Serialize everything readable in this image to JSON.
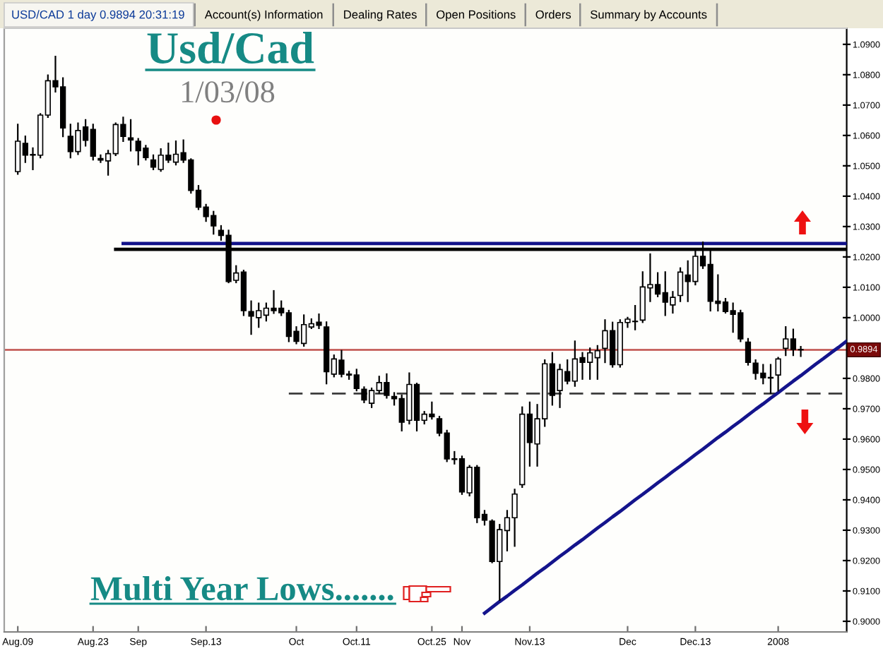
{
  "chart_data": {
    "type": "candlestick",
    "title": "Usd/Cad",
    "subtitle": "1/03/08",
    "annotations": [
      "USD/CAD 1 day 0.9894 20:31:19",
      "Account(s) Information",
      "Dealing Rates",
      "Open Positions",
      "Orders",
      "Summary by Accounts",
      "Multi Year Lows......."
    ],
    "categories": [
      "Aug.09",
      null,
      null,
      null,
      null,
      null,
      null,
      null,
      null,
      null,
      "Aug.23",
      null,
      null,
      null,
      null,
      null,
      "Sep",
      null,
      null,
      null,
      null,
      null,
      null,
      null,
      null,
      "Sep.13",
      null,
      null,
      null,
      null,
      null,
      null,
      null,
      null,
      null,
      null,
      null,
      "Oct",
      null,
      null,
      null,
      null,
      null,
      null,
      null,
      "Oct.11",
      null,
      null,
      null,
      null,
      null,
      null,
      null,
      null,
      null,
      "Oct.25",
      null,
      null,
      null,
      "Nov",
      null,
      null,
      null,
      null,
      null,
      null,
      null,
      null,
      "Nov.13",
      null,
      null,
      null,
      null,
      null,
      null,
      null,
      null,
      null,
      null,
      null,
      null,
      "Dec",
      null,
      null,
      null,
      null,
      null,
      null,
      null,
      null,
      "Dec.13",
      null,
      null,
      null,
      null,
      null,
      null,
      null,
      null,
      null,
      null,
      "2008",
      null,
      null,
      null,
      null,
      null,
      null,
      null,
      null,
      null
    ],
    "ohlc": [
      [
        1.0481,
        1.0636,
        1.0473,
        1.0581
      ],
      [
        1.0574,
        1.0597,
        1.0512,
        1.0535
      ],
      [
        1.0535,
        1.0558,
        1.0488,
        1.0537
      ],
      [
        1.0535,
        1.0671,
        1.0527,
        1.0667
      ],
      [
        1.0667,
        1.0798,
        1.066,
        1.078
      ],
      [
        1.078,
        1.086,
        1.0744,
        1.076
      ],
      [
        1.076,
        1.0789,
        1.0597,
        1.0625
      ],
      [
        1.0597,
        1.0636,
        1.0527,
        1.0547
      ],
      [
        1.0547,
        1.064,
        1.0538,
        1.0616
      ],
      [
        1.0628,
        1.0651,
        1.0566,
        1.0584
      ],
      [
        1.062,
        1.0636,
        1.052,
        1.0532
      ],
      [
        1.0524,
        1.0535,
        1.0512,
        1.0519
      ],
      [
        1.0516,
        1.055,
        1.047,
        1.054
      ],
      [
        1.054,
        1.064,
        1.0535,
        1.0636
      ],
      [
        1.0636,
        1.0659,
        1.0581,
        1.0597
      ],
      [
        1.0592,
        1.0651,
        1.055,
        1.0585
      ],
      [
        1.0581,
        1.0589,
        1.0504,
        1.055
      ],
      [
        1.0558,
        1.0566,
        1.052,
        1.0527
      ],
      [
        1.0519,
        1.0535,
        1.0488,
        1.0496
      ],
      [
        1.0488,
        1.0555,
        1.0483,
        1.0535
      ],
      [
        1.0535,
        1.0574,
        1.0512,
        1.0519
      ],
      [
        1.0512,
        1.0581,
        1.0504,
        1.0538
      ],
      [
        1.0543,
        1.0584,
        1.0512,
        1.0519
      ],
      [
        1.0519,
        1.0522,
        1.0411,
        1.0419
      ],
      [
        1.0419,
        1.0434,
        1.0357,
        1.0364
      ],
      [
        1.0364,
        1.0372,
        1.0318,
        1.0333
      ],
      [
        1.0336,
        1.0349,
        1.0276,
        1.0302
      ],
      [
        1.0287,
        1.0302,
        1.0256,
        1.0271
      ],
      [
        1.0271,
        1.0287,
        1.0116,
        1.0119
      ],
      [
        1.0123,
        1.017,
        1.0116,
        1.0147
      ],
      [
        1.015,
        1.0155,
        1.0008,
        1.0023
      ],
      [
        1.002,
        1.0054,
        0.9946,
        1.0005
      ],
      [
        1.0,
        1.0047,
        0.9969,
        1.0023
      ],
      [
        1.0008,
        1.0047,
        0.999,
        1.0031
      ],
      [
        1.0031,
        1.0088,
        1.0015,
        1.0023
      ],
      [
        1.0031,
        1.0054,
        1.0008,
        1.0016
      ],
      [
        1.0016,
        1.0023,
        0.9922,
        0.9938
      ],
      [
        0.9955,
        0.9969,
        0.9915,
        0.9922
      ],
      [
        0.9915,
        1.0008,
        0.9907,
        0.9977
      ],
      [
        0.9969,
        0.9995,
        0.9965,
        0.998
      ],
      [
        0.9985,
        1.0011,
        0.9965,
        0.9975
      ],
      [
        0.9969,
        0.9985,
        0.9783,
        0.9822
      ],
      [
        0.9814,
        0.9876,
        0.9806,
        0.9864
      ],
      [
        0.986,
        0.9891,
        0.9806,
        0.9814
      ],
      [
        0.9814,
        0.9822,
        0.9798,
        0.9811
      ],
      [
        0.9811,
        0.9829,
        0.976,
        0.9767
      ],
      [
        0.9764,
        0.9771,
        0.9721,
        0.9729
      ],
      [
        0.9718,
        0.9767,
        0.9705,
        0.976
      ],
      [
        0.976,
        0.9806,
        0.9752,
        0.9786
      ],
      [
        0.9786,
        0.9814,
        0.9736,
        0.9744
      ],
      [
        0.974,
        0.9752,
        0.9713,
        0.9733
      ],
      [
        0.9733,
        0.9744,
        0.9628,
        0.9656
      ],
      [
        0.9662,
        0.9817,
        0.9651,
        0.978
      ],
      [
        0.978,
        0.9783,
        0.9628,
        0.9662
      ],
      [
        0.9662,
        0.969,
        0.9651,
        0.9682
      ],
      [
        0.9682,
        0.9721,
        0.9667,
        0.9674
      ],
      [
        0.9667,
        0.9674,
        0.9612,
        0.962
      ],
      [
        0.962,
        0.9628,
        0.9527,
        0.9535
      ],
      [
        0.9535,
        0.9558,
        0.9519,
        0.9533
      ],
      [
        0.9535,
        0.9543,
        0.9419,
        0.9426
      ],
      [
        0.9423,
        0.9512,
        0.9414,
        0.9507
      ],
      [
        0.9507,
        0.9512,
        0.9326,
        0.9341
      ],
      [
        0.9352,
        0.9364,
        0.9318,
        0.9333
      ],
      [
        0.933,
        0.9333,
        0.9194,
        0.9197
      ],
      [
        0.9197,
        0.9318,
        0.907,
        0.9302
      ],
      [
        0.9299,
        0.9364,
        0.9233,
        0.9341
      ],
      [
        0.9341,
        0.9434,
        0.9248,
        0.9419
      ],
      [
        0.945,
        0.9705,
        0.9442,
        0.9682
      ],
      [
        0.9682,
        0.9721,
        0.9512,
        0.9589
      ],
      [
        0.9584,
        0.9713,
        0.9512,
        0.9667
      ],
      [
        0.9667,
        0.986,
        0.9643,
        0.9848
      ],
      [
        0.9848,
        0.9884,
        0.9713,
        0.9744
      ],
      [
        0.976,
        0.9845,
        0.9705,
        0.9829
      ],
      [
        0.9822,
        0.986,
        0.9783,
        0.9791
      ],
      [
        0.9791,
        0.9922,
        0.9775,
        0.9864
      ],
      [
        0.9868,
        0.9884,
        0.9798,
        0.9853
      ],
      [
        0.9853,
        0.9899,
        0.9798,
        0.9884
      ],
      [
        0.9868,
        0.9907,
        0.9798,
        0.9891
      ],
      [
        0.9899,
        0.9992,
        0.9853,
        0.9957
      ],
      [
        0.9957,
        0.9984,
        0.9838,
        0.9845
      ],
      [
        0.9845,
        0.9992,
        0.9838,
        0.9984
      ],
      [
        0.9984,
        1.0,
        0.9969,
        0.9995
      ],
      [
        0.9988,
        1.0039,
        0.9961,
        0.9987
      ],
      [
        0.9992,
        1.015,
        0.9985,
        1.0101
      ],
      [
        1.0098,
        1.0209,
        1.0054,
        1.0109
      ],
      [
        1.0109,
        1.0147,
        1.007,
        1.0078
      ],
      [
        1.0082,
        1.015,
        1.0008,
        1.0051
      ],
      [
        1.0042,
        1.0085,
        1.0016,
        1.0067
      ],
      [
        1.0073,
        1.0163,
        1.0054,
        1.015
      ],
      [
        1.014,
        1.0186,
        1.0054,
        1.0119
      ],
      [
        1.0119,
        1.0225,
        1.0109,
        1.0202
      ],
      [
        1.0202,
        1.0248,
        1.0163,
        1.0171
      ],
      [
        1.0175,
        1.0225,
        1.0023,
        1.0054
      ],
      [
        1.0054,
        1.014,
        1.0023,
        1.0047
      ],
      [
        1.0051,
        1.0062,
        1.0016,
        1.002
      ],
      [
        1.0023,
        1.0047,
        0.9953,
        1.0011
      ],
      [
        1.0016,
        1.0023,
        0.9922,
        0.993
      ],
      [
        0.9919,
        0.993,
        0.9845,
        0.9853
      ],
      [
        0.985,
        0.986,
        0.9798,
        0.9817
      ],
      [
        0.9817,
        0.9845,
        0.9783,
        0.9802
      ],
      [
        0.9803,
        0.9845,
        0.9752,
        0.9801
      ],
      [
        0.9811,
        0.9868,
        0.976,
        0.9864
      ],
      [
        0.9899,
        0.9969,
        0.9876,
        0.993
      ],
      [
        0.993,
        0.9961,
        0.9876,
        0.9895
      ],
      [
        0.9895,
        0.9904,
        0.9873,
        0.9894
      ],
      null,
      null,
      null,
      null,
      null,
      null
    ],
    "ylim": [
      0.8965,
      1.0953
    ],
    "yticks": [
      {
        "value": 0.9,
        "label": "0.9000"
      },
      {
        "value": 0.91,
        "label": "0.9100"
      },
      {
        "value": 0.92,
        "label": "0.9200"
      },
      {
        "value": 0.93,
        "label": "0.9300"
      },
      {
        "value": 0.94,
        "label": "0.9400"
      },
      {
        "value": 0.95,
        "label": "0.9500"
      },
      {
        "value": 0.96,
        "label": "0.9600"
      },
      {
        "value": 0.97,
        "label": "0.9700"
      },
      {
        "value": 0.98,
        "label": "0.9800"
      },
      {
        "value": 1.0,
        "label": "1.0000"
      },
      {
        "value": 1.01,
        "label": "1.0100"
      },
      {
        "value": 1.02,
        "label": "1.0200"
      },
      {
        "value": 1.03,
        "label": "1.0300"
      },
      {
        "value": 1.04,
        "label": "1.0400"
      },
      {
        "value": 1.05,
        "label": "1.0500"
      },
      {
        "value": 1.06,
        "label": "1.0600"
      },
      {
        "value": 1.07,
        "label": "1.0700"
      },
      {
        "value": 1.08,
        "label": "1.0800"
      },
      {
        "value": 1.09,
        "label": "1.0900"
      }
    ],
    "series": [
      {
        "type": "line",
        "color": "#10108a",
        "values": [
          null,
          null,
          null,
          null,
          null,
          null,
          null,
          null,
          null,
          null,
          null,
          null,
          null,
          null,
          1.0244,
          1.0244,
          1.0244,
          1.0244,
          1.0244,
          1.0244,
          1.0244,
          1.0244,
          1.0244,
          1.0244,
          1.0244,
          1.0244,
          1.0244,
          1.0244,
          1.0244,
          1.0244,
          1.0244,
          1.0244,
          1.0244,
          1.0244,
          1.0244,
          1.0244,
          1.0244,
          1.0244,
          1.0244,
          1.0244,
          1.0244,
          1.0244,
          1.0244,
          1.0244,
          1.0244,
          1.0244,
          1.0244,
          1.0244,
          1.0244,
          1.0244,
          1.0244,
          1.0244,
          1.0244,
          1.0244,
          1.0244,
          1.0244,
          1.0244,
          1.0244,
          1.0244,
          1.0244,
          1.0244,
          1.0244,
          1.0244,
          1.0244,
          1.0244,
          1.0244,
          1.0244,
          1.0244,
          1.0244,
          1.0244,
          1.0244,
          1.0244,
          1.0244,
          1.0244,
          1.0244,
          1.0244,
          1.0244,
          1.0244,
          1.0244,
          1.0244,
          1.0244,
          1.0244,
          1.0244,
          1.0244,
          1.0244,
          1.0244,
          1.0244,
          1.0244,
          1.0244,
          1.0244,
          1.0244,
          1.0244,
          1.0244,
          1.0244,
          1.0244,
          1.0244,
          1.0244,
          1.0244,
          1.0244,
          1.0244,
          1.0244,
          1.0244,
          1.0244,
          1.0244,
          1.0244,
          1.0244,
          1.0244,
          1.0244,
          1.0244,
          1.0244,
          1.0244
        ]
      },
      {
        "type": "line",
        "color": "#000000",
        "values": [
          null,
          null,
          null,
          null,
          null,
          null,
          null,
          null,
          null,
          null,
          null,
          null,
          null,
          1.0225,
          1.0225,
          1.0225,
          1.0225,
          1.0225,
          1.0225,
          1.0225,
          1.0225,
          1.0225,
          1.0225,
          1.0225,
          1.0225,
          1.0225,
          1.0225,
          1.0225,
          1.0225,
          1.0225,
          1.0225,
          1.0225,
          1.0225,
          1.0225,
          1.0225,
          1.0225,
          1.0225,
          1.0225,
          1.0225,
          1.0225,
          1.0225,
          1.0225,
          1.0225,
          1.0225,
          1.0225,
          1.0225,
          1.0225,
          1.0225,
          1.0225,
          1.0225,
          1.0225,
          1.0225,
          1.0225,
          1.0225,
          1.0225,
          1.0225,
          1.0225,
          1.0225,
          1.0225,
          1.0225,
          1.0225,
          1.0225,
          1.0225,
          1.0225,
          1.0225,
          1.0225,
          1.0225,
          1.0225,
          1.0225,
          1.0225,
          1.0225,
          1.0225,
          1.0225,
          1.0225,
          1.0225,
          1.0225,
          1.0225,
          1.0225,
          1.0225,
          1.0225,
          1.0225,
          1.0225,
          1.0225,
          1.0225,
          1.0225,
          1.0225,
          1.0225,
          1.0225,
          1.0225,
          1.0225,
          1.0225,
          1.0225,
          1.0225,
          1.0225,
          1.0225,
          1.0225,
          1.0225,
          1.0225,
          1.0225,
          1.0225,
          1.0225,
          1.0225,
          1.0225,
          1.0225,
          1.0225,
          1.0225,
          1.0225,
          1.0225,
          1.0225,
          1.0225,
          1.0225
        ]
      },
      {
        "type": "line",
        "color": "#3c3c3c",
        "line_style": "dashed",
        "values": [
          null,
          null,
          null,
          null,
          null,
          null,
          null,
          null,
          null,
          null,
          null,
          null,
          null,
          null,
          null,
          null,
          null,
          null,
          null,
          null,
          null,
          null,
          null,
          null,
          null,
          null,
          null,
          null,
          null,
          null,
          null,
          null,
          null,
          null,
          null,
          null,
          0.975,
          0.975,
          0.975,
          0.975,
          0.975,
          0.975,
          0.975,
          0.975,
          0.975,
          0.975,
          0.975,
          0.975,
          0.975,
          0.975,
          0.975,
          0.975,
          0.975,
          0.975,
          0.975,
          0.975,
          0.975,
          0.975,
          0.975,
          0.975,
          0.975,
          0.975,
          0.975,
          0.975,
          0.975,
          0.975,
          0.975,
          0.975,
          0.975,
          0.975,
          0.975,
          0.975,
          0.975,
          0.975,
          0.975,
          0.975,
          0.975,
          0.975,
          0.975,
          0.975,
          0.975,
          0.975,
          0.975,
          0.975,
          0.975,
          0.975,
          0.975,
          0.975,
          0.975,
          0.975,
          0.975,
          0.975,
          0.975,
          0.975,
          0.975,
          0.975,
          0.975,
          0.975,
          0.975,
          0.975,
          0.975,
          0.975,
          0.975,
          0.975,
          0.975,
          0.975,
          0.975,
          0.975,
          0.975,
          0.975,
          0.975
        ]
      },
      {
        "type": "line",
        "color": "#14148c",
        "values": [
          null,
          null,
          null,
          null,
          null,
          null,
          null,
          null,
          null,
          null,
          null,
          null,
          null,
          null,
          null,
          null,
          null,
          null,
          null,
          null,
          null,
          null,
          null,
          null,
          null,
          null,
          null,
          null,
          null,
          null,
          null,
          null,
          null,
          null,
          null,
          null,
          null,
          null,
          null,
          null,
          null,
          null,
          null,
          null,
          null,
          null,
          null,
          null,
          null,
          null,
          null,
          null,
          null,
          null,
          null,
          null,
          null,
          null,
          null,
          null,
          null,
          null,
          0.9027,
          0.9046,
          0.9065,
          0.9083,
          0.9102,
          0.912,
          0.9139,
          0.9158,
          0.9176,
          0.9195,
          0.9214,
          0.9232,
          0.9251,
          0.9269,
          0.9288,
          0.9307,
          0.9325,
          0.9344,
          0.9362,
          0.9381,
          0.94,
          0.9418,
          0.9437,
          0.9456,
          0.9474,
          0.9493,
          0.9511,
          0.953,
          0.9549,
          0.9567,
          0.9586,
          0.9605,
          0.9623,
          0.9642,
          0.966,
          0.9679,
          0.9698,
          0.9716,
          0.9735,
          0.9753,
          0.9772,
          0.9791,
          0.9809,
          0.9828,
          0.9847,
          0.9865,
          0.9884,
          0.9902,
          0.9921
        ]
      }
    ],
    "ref_lines": [
      {
        "axis": "y",
        "value": 0.9894,
        "label": "0.9894",
        "color": "#c0504d"
      }
    ]
  }
}
